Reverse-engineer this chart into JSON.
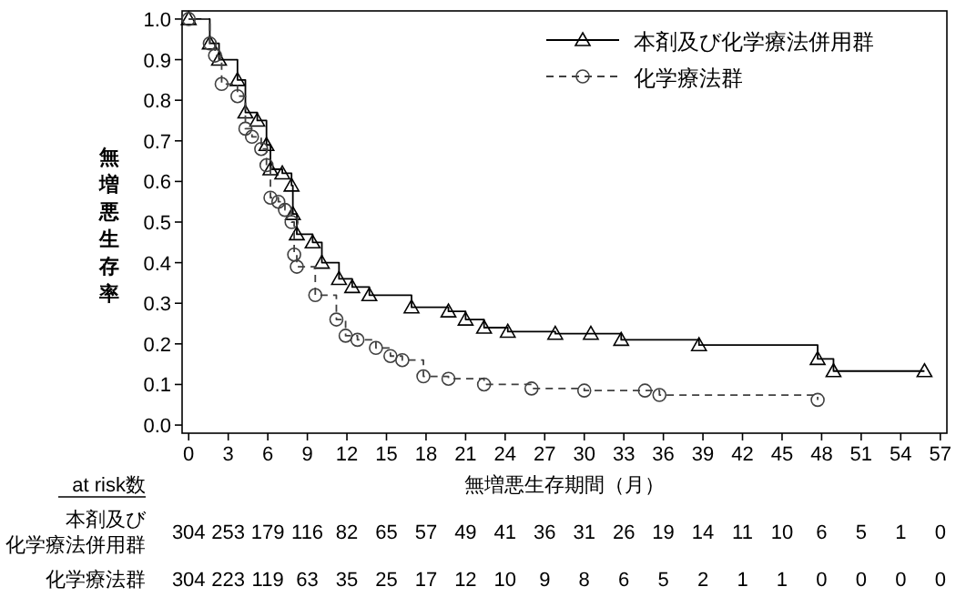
{
  "chart_data": {
    "type": "step",
    "xlabel": "無増悪生存期間（月）",
    "ylabel": "無増悪生存率",
    "xlim": [
      -0.5,
      57.5
    ],
    "ylim": [
      -0.02,
      1.02
    ],
    "xticks": [
      0,
      3,
      6,
      9,
      12,
      15,
      18,
      21,
      24,
      27,
      30,
      33,
      36,
      39,
      42,
      45,
      48,
      51,
      54,
      57
    ],
    "yticks": [
      {
        "value": 0,
        "label": "0.0"
      },
      0.1,
      0.2,
      0.3,
      0.4,
      0.5,
      0.6,
      0.7,
      0.8,
      0.9,
      {
        "value": 1,
        "label": "1.0"
      }
    ],
    "legend": "top right",
    "grid": false,
    "series": [
      {
        "name": "本剤及び化学療法併用群",
        "color": "#000000",
        "marker": "triangle",
        "line_style": "solid",
        "x": [
          0,
          1.6,
          2.3,
          3.7,
          4.3,
          5.2,
          5.9,
          6.2,
          7.1,
          7.8,
          7.9,
          8.2,
          9.4,
          10.1,
          11.4,
          12.4,
          13.7,
          16.9,
          19.7,
          21,
          22.4,
          24.2,
          27.8,
          30.5,
          32.8,
          38.7,
          47.7,
          48.9,
          55.8
        ],
        "values": [
          1.0,
          0.94,
          0.9,
          0.85,
          0.77,
          0.75,
          0.69,
          0.63,
          0.62,
          0.59,
          0.52,
          0.47,
          0.45,
          0.4,
          0.36,
          0.34,
          0.32,
          0.29,
          0.28,
          0.26,
          0.24,
          0.23,
          0.225,
          0.225,
          0.21,
          0.197,
          0.163,
          0.133,
          0.133
        ]
      },
      {
        "name": "化学療法群",
        "color": "#404040",
        "marker": "circle",
        "line_style": "dashed",
        "x": [
          0,
          1.6,
          2.0,
          2.5,
          3.7,
          4.3,
          4.8,
          5.5,
          5.9,
          6.2,
          6.8,
          7.3,
          7.8,
          8.0,
          8.2,
          9.6,
          11.2,
          11.9,
          12.8,
          14.2,
          15.3,
          16.2,
          17.8,
          19.7,
          22.4,
          26.0,
          30.0,
          34.6,
          35.7,
          47.7
        ],
        "values": [
          1.0,
          0.94,
          0.91,
          0.84,
          0.81,
          0.73,
          0.71,
          0.68,
          0.64,
          0.56,
          0.55,
          0.53,
          0.5,
          0.42,
          0.39,
          0.32,
          0.26,
          0.22,
          0.21,
          0.19,
          0.17,
          0.16,
          0.12,
          0.114,
          0.1,
          0.09,
          0.085,
          0.085,
          0.074,
          0.062
        ]
      }
    ],
    "annotations": [
      "at risk数",
      "本剤及び化学療法併用群",
      "304 253 179 116 82 65 57 49 41 36 31 26 19 14 11 10 6 5 1 0",
      "化学療法群",
      "304 223 119 63 35 25 17 12 10 9 8 6 5 2 1 1 0 0 0 0"
    ]
  }
}
